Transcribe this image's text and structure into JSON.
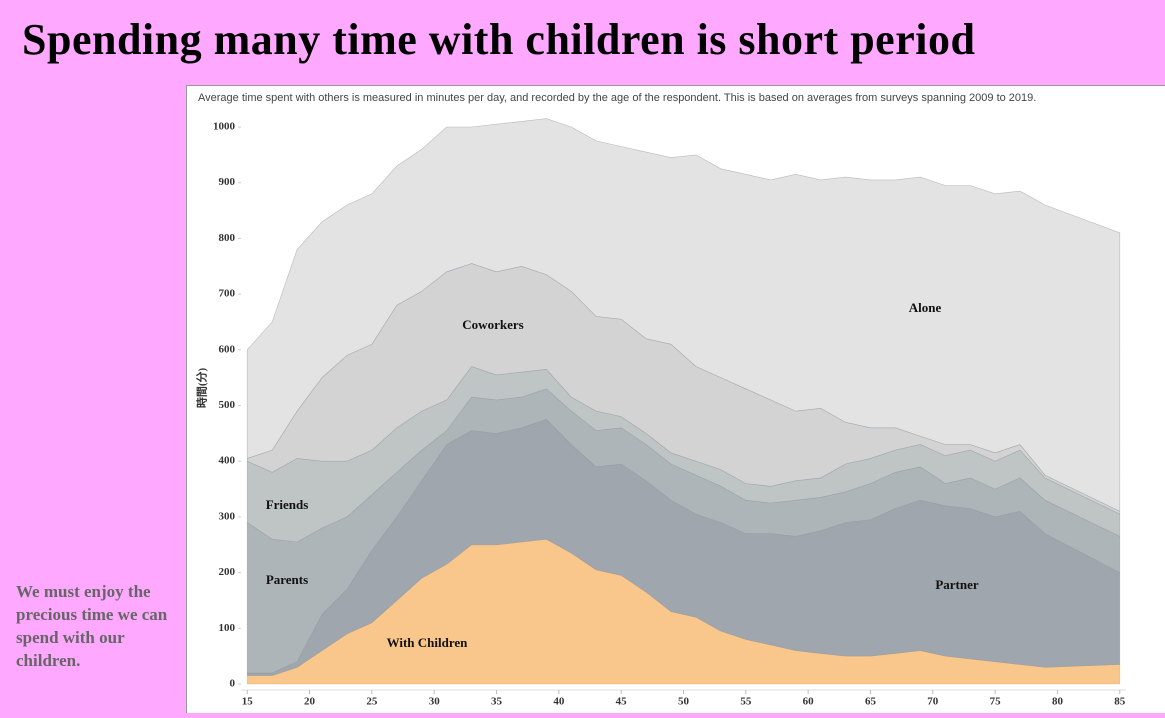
{
  "chart_data": {
    "type": "stacked_area",
    "title": "Spending many time with children is short period",
    "subtitle": "Average time spent with others is measured in minutes per day, and recorded by the age of the respondent. This is based on averages from surveys spanning 2009 to 2019.",
    "annotation": "We must enjoy the precious time we can spend with our children.",
    "y_label": "時間(分)",
    "x": [
      15,
      17,
      19,
      21,
      23,
      25,
      27,
      29,
      31,
      33,
      35,
      37,
      39,
      41,
      43,
      45,
      47,
      49,
      51,
      53,
      55,
      57,
      59,
      61,
      63,
      65,
      67,
      69,
      71,
      73,
      75,
      77,
      79,
      85
    ],
    "series": [
      {
        "name": "With Children",
        "color": "#f9c78c",
        "values": [
          15,
          15,
          30,
          60,
          90,
          110,
          150,
          190,
          215,
          250,
          250,
          255,
          260,
          235,
          205,
          195,
          165,
          130,
          120,
          95,
          80,
          70,
          60,
          55,
          50,
          50,
          55,
          60,
          50,
          45,
          40,
          35,
          30,
          35
        ]
      },
      {
        "name": "Partner",
        "color": "#9fa6ad",
        "values": [
          5,
          5,
          10,
          65,
          80,
          130,
          150,
          175,
          215,
          205,
          200,
          205,
          215,
          195,
          185,
          200,
          200,
          200,
          185,
          195,
          190,
          200,
          205,
          220,
          240,
          245,
          260,
          270,
          270,
          270,
          260,
          275,
          240,
          165
        ]
      },
      {
        "name": "Parents",
        "color": "#aeb5b8",
        "values": [
          270,
          240,
          215,
          155,
          130,
          100,
          80,
          55,
          25,
          60,
          60,
          55,
          55,
          60,
          65,
          65,
          65,
          65,
          70,
          65,
          60,
          55,
          65,
          60,
          55,
          65,
          65,
          60,
          40,
          55,
          50,
          60,
          60,
          65
        ]
      },
      {
        "name": "Friends",
        "color": "#bfc4c5",
        "values": [
          110,
          120,
          150,
          120,
          100,
          80,
          80,
          70,
          55,
          55,
          45,
          45,
          35,
          25,
          35,
          20,
          20,
          20,
          25,
          30,
          30,
          30,
          35,
          35,
          50,
          45,
          40,
          40,
          50,
          50,
          50,
          50,
          40,
          40
        ]
      },
      {
        "name": "Coworkers",
        "color": "#d3d3d3",
        "values": [
          5,
          40,
          85,
          150,
          190,
          190,
          220,
          215,
          230,
          185,
          185,
          190,
          170,
          190,
          170,
          175,
          170,
          195,
          170,
          165,
          170,
          155,
          125,
          125,
          75,
          55,
          40,
          15,
          20,
          10,
          15,
          10,
          5,
          5
        ]
      },
      {
        "name": "Alone",
        "color": "#e3e3e3",
        "values": [
          195,
          230,
          290,
          280,
          270,
          270,
          250,
          255,
          260,
          245,
          265,
          260,
          280,
          295,
          315,
          310,
          335,
          335,
          380,
          375,
          385,
          395,
          425,
          410,
          440,
          445,
          445,
          465,
          465,
          465,
          465,
          455,
          485,
          500
        ]
      }
    ],
    "xlim": [
      14.5,
      85.5
    ],
    "ylim": [
      0,
      1000
    ],
    "xticks": [
      15,
      20,
      25,
      30,
      35,
      40,
      45,
      50,
      55,
      60,
      65,
      70,
      75,
      80,
      85
    ],
    "yticks": [
      0,
      100,
      200,
      300,
      400,
      500,
      600,
      700,
      800,
      900,
      1000
    ]
  }
}
